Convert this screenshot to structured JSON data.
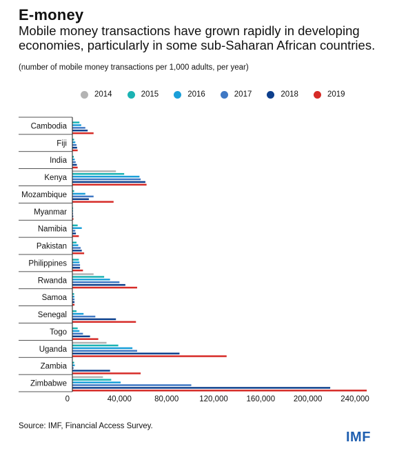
{
  "header": {
    "title": "E-money",
    "subtitle": "Mobile money transactions have grown rapidly in developing economies, particularly in some sub-Saharan African countries.",
    "note": "(number of mobile money transactions per 1,000 adults, per year)"
  },
  "footer": {
    "source": "Source: IMF, Financial Access Survey.",
    "logo": "IMF"
  },
  "colors": {
    "2014": "#b3b3b3",
    "2015": "#1bb3b3",
    "2016": "#1a9fd9",
    "2017": "#3f78c4",
    "2018": "#0d3f8c",
    "2019": "#d62b27"
  },
  "chart_data": {
    "type": "bar",
    "orientation": "horizontal",
    "categories": [
      "Cambodia",
      "Fiji",
      "India",
      "Kenya",
      "Mozambique",
      "Myanmar",
      "Namibia",
      "Pakistan",
      "Philippines",
      "Rwanda",
      "Samoa",
      "Senegal",
      "Togo",
      "Uganda",
      "Zambia",
      "Zimbabwe"
    ],
    "series": [
      {
        "name": "2014",
        "values": [
          null,
          null,
          null,
          37000,
          null,
          null,
          null,
          null,
          null,
          18000,
          null,
          null,
          null,
          29000,
          null,
          26000
        ]
      },
      {
        "name": "2015",
        "values": [
          6000,
          1500,
          1200,
          44000,
          1500,
          300,
          4500,
          3500,
          5500,
          27000,
          1500,
          3500,
          4500,
          39000,
          1500,
          33000
        ]
      },
      {
        "name": "2016",
        "values": [
          7500,
          2500,
          2000,
          57000,
          11000,
          400,
          8000,
          5000,
          6000,
          32000,
          1700,
          9500,
          6000,
          51000,
          2000,
          41000
        ]
      },
      {
        "name": "2017",
        "values": [
          11000,
          3500,
          2800,
          58000,
          18000,
          500,
          2500,
          7000,
          6500,
          40000,
          1800,
          19500,
          9000,
          55000,
          1000,
          101000
        ]
      },
      {
        "name": "2018",
        "values": [
          13000,
          4000,
          3800,
          62000,
          14000,
          700,
          3000,
          8000,
          6500,
          45000,
          1800,
          37000,
          15000,
          91000,
          32000,
          219000
        ]
      },
      {
        "name": "2019",
        "values": [
          18000,
          4500,
          4500,
          63000,
          35000,
          900,
          5500,
          10000,
          9000,
          55000,
          1800,
          54000,
          22000,
          131000,
          58000,
          250000
        ]
      }
    ],
    "xticks": [
      "0",
      "40,000",
      "80,000",
      "120,000",
      "160,000",
      "200,000",
      "240,000"
    ],
    "xlim": [
      0,
      260000
    ],
    "grid": false,
    "legend": "top"
  }
}
